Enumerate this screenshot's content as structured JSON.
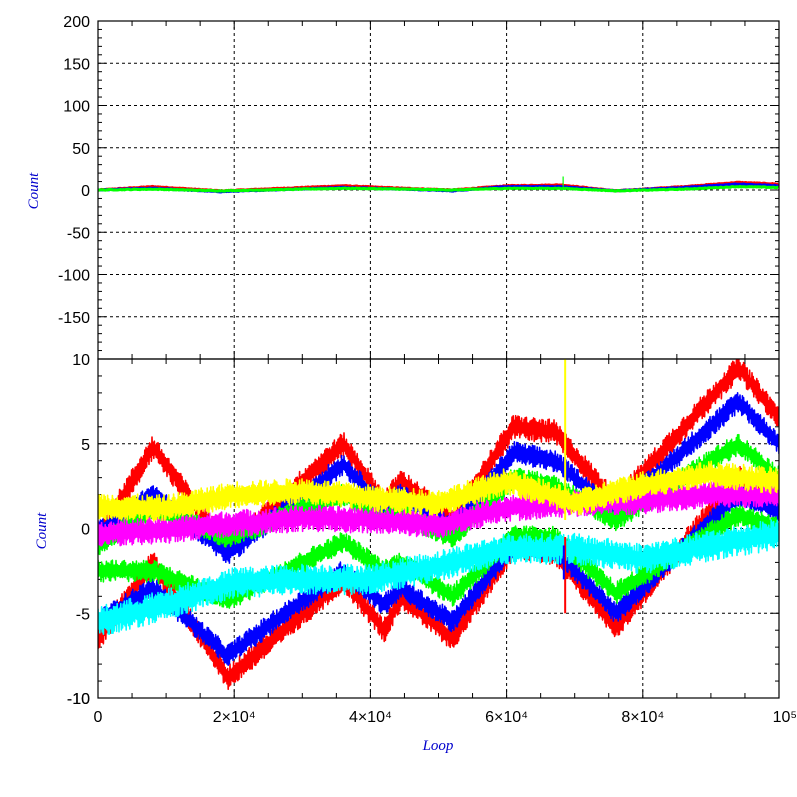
{
  "chart_data": [
    {
      "type": "line",
      "panel": "top",
      "xlabel": "",
      "ylabel": "Count",
      "xlim": [
        0,
        100000
      ],
      "ylim": [
        -200,
        200
      ],
      "yticks": [
        "200",
        "150",
        "100",
        "50",
        "0",
        "-50",
        "-100",
        "-150"
      ],
      "ytick_values": [
        200,
        150,
        100,
        50,
        0,
        -50,
        -100,
        -150
      ],
      "grid": true,
      "colors": [
        "#ff0000",
        "#0000ff",
        "#00ff00"
      ],
      "series": [
        {
          "color": "#ff0000",
          "x": [
            0,
            8000,
            18000,
            36000,
            45000,
            52000,
            60000,
            68000,
            76000,
            86000,
            94000,
            100000
          ],
          "y": [
            0,
            4,
            -1,
            5,
            2,
            0,
            5,
            6,
            -1,
            4,
            9,
            7
          ]
        },
        {
          "color": "#0000ff",
          "x": [
            0,
            8000,
            18000,
            36000,
            45000,
            52000,
            60000,
            68000,
            76000,
            86000,
            94000,
            100000
          ],
          "y": [
            0,
            2,
            -2,
            3,
            1,
            -1,
            4,
            4,
            -1,
            3,
            7,
            5
          ]
        },
        {
          "color": "#00ff00",
          "x": [
            0,
            8000,
            18000,
            36000,
            45000,
            52000,
            60000,
            68000,
            76000,
            86000,
            94000,
            100000
          ],
          "y": [
            0,
            1,
            -1,
            2,
            1,
            0,
            2,
            2,
            -1,
            1,
            4,
            3
          ]
        }
      ]
    },
    {
      "type": "line",
      "panel": "bottom",
      "xlabel": "Loop",
      "ylabel": "Count",
      "xlim": [
        0,
        100000
      ],
      "ylim": [
        -10,
        10
      ],
      "yticks": [
        "10",
        "5",
        "0",
        "-5",
        "-10"
      ],
      "ytick_values": [
        10,
        5,
        0,
        -5,
        -10
      ],
      "xticks": [
        "0",
        "2×10⁴",
        "4×10⁴",
        "6×10⁴",
        "8×10⁴",
        "10⁵"
      ],
      "xtick_values": [
        0,
        20000,
        40000,
        60000,
        80000,
        100000
      ],
      "grid": true,
      "series": [
        {
          "color": "#ff0000",
          "band": 0.55,
          "x": [
            0,
            8000,
            19000,
            36000,
            42000,
            44500,
            52000,
            61000,
            67000,
            76000,
            94000,
            100000
          ],
          "y": [
            -6.5,
            -2.0,
            -8.8,
            -3.0,
            -6.0,
            -4.0,
            -6.5,
            -1.0,
            -1.5,
            -5.8,
            3.0,
            1.5
          ]
        },
        {
          "color": "#ff0000",
          "band": 0.55,
          "x": [
            0,
            8000,
            19000,
            36000,
            42000,
            44500,
            52000,
            61000,
            67000,
            76000,
            94000,
            100000
          ],
          "y": [
            -0.5,
            4.8,
            -1.2,
            5.0,
            1.5,
            2.8,
            0.5,
            6.0,
            5.7,
            1.5,
            9.5,
            6.5
          ]
        },
        {
          "color": "#0000ff",
          "band": 0.5,
          "x": [
            0,
            8000,
            19000,
            36000,
            42000,
            44500,
            52000,
            61000,
            67000,
            76000,
            94000,
            100000
          ],
          "y": [
            -5.5,
            -3.5,
            -7.5,
            -2.5,
            -4.5,
            -3.5,
            -5.5,
            -1.0,
            -1.2,
            -5.0,
            2.0,
            1.0
          ]
        },
        {
          "color": "#0000ff",
          "band": 0.5,
          "x": [
            0,
            8000,
            19000,
            36000,
            42000,
            44500,
            52000,
            61000,
            67000,
            76000,
            94000,
            100000
          ],
          "y": [
            -0.2,
            2.0,
            -1.5,
            3.8,
            1.2,
            2.0,
            0.0,
            4.5,
            4.0,
            1.0,
            7.5,
            5.0
          ]
        },
        {
          "color": "#00ff00",
          "band": 0.5,
          "x": [
            0,
            8000,
            19000,
            36000,
            42000,
            44500,
            52000,
            61000,
            67000,
            76000,
            94000,
            100000
          ],
          "y": [
            -2.5,
            -2.5,
            -4.2,
            -0.8,
            -2.5,
            -2.0,
            -4.0,
            -0.5,
            -0.5,
            -3.8,
            0.8,
            0.0
          ]
        },
        {
          "color": "#00ff00",
          "band": 0.5,
          "x": [
            0,
            8000,
            19000,
            36000,
            42000,
            44500,
            52000,
            61000,
            67000,
            76000,
            94000,
            100000
          ],
          "y": [
            -1.0,
            1.2,
            -0.5,
            2.0,
            0.5,
            0.8,
            -0.5,
            3.0,
            2.5,
            0.5,
            5.0,
            3.0
          ]
        },
        {
          "color": "#ff00ff",
          "band": 0.6,
          "x": [
            0,
            10000,
            20000,
            30000,
            40000,
            50000,
            60000,
            70000,
            80000,
            90000,
            100000
          ],
          "y": [
            -0.3,
            -0.1,
            0.3,
            0.6,
            0.5,
            0.2,
            1.2,
            1.5,
            1.6,
            2.0,
            2.0
          ]
        },
        {
          "color": "#ffff00",
          "band": 0.6,
          "x": [
            0,
            10000,
            20000,
            30000,
            40000,
            50000,
            60000,
            70000,
            80000,
            90000,
            100000
          ],
          "y": [
            1.3,
            1.2,
            2.0,
            2.2,
            1.8,
            1.5,
            2.8,
            1.5,
            2.6,
            3.2,
            2.8
          ]
        },
        {
          "color": "#00ffff",
          "band": 0.7,
          "x": [
            0,
            10000,
            20000,
            30000,
            40000,
            50000,
            60000,
            70000,
            80000,
            90000,
            100000
          ],
          "y": [
            -5.5,
            -4.5,
            -3.2,
            -3.0,
            -3.0,
            -2.2,
            -1.2,
            -1.2,
            -1.8,
            -1.0,
            -0.3
          ]
        }
      ],
      "spikes": [
        {
          "color": "#ffff00",
          "x": 68600,
          "y": [
            0.5,
            10.0
          ]
        },
        {
          "color": "#ff0000",
          "x": 68600,
          "y": [
            -5.0,
            -0.5
          ]
        },
        {
          "color": "#0000ff",
          "x": 68400,
          "y": [
            -3.0,
            -1.0
          ]
        }
      ]
    }
  ]
}
